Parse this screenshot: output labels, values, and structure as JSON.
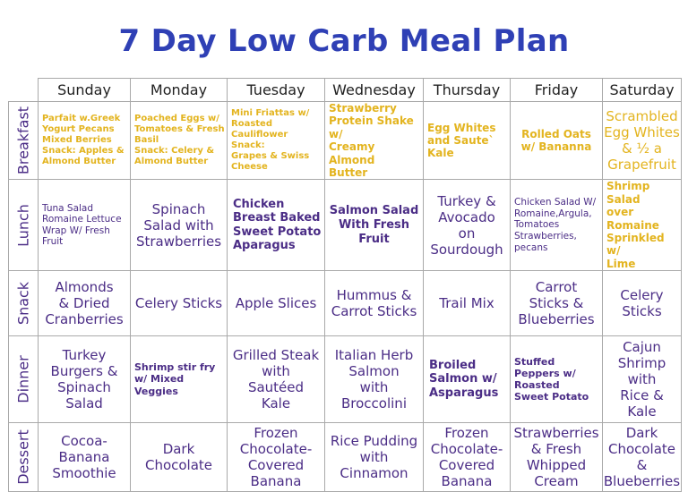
{
  "title": "7 Day Low Carb Meal Plan",
  "days": [
    "Sunday",
    "Monday",
    "Tuesday",
    "Wednesday",
    "Thursday",
    "Friday",
    "Saturday"
  ],
  "meals": [
    {
      "label": "Breakfast",
      "cells": [
        "Parfait w.Greek\nYogurt Pecans\nMixed Berries\nSnack: Apples &\nAlmond Butter",
        "Poached Eggs w/\nTomatoes & Fresh\nBasil\nSnack: Celery &\nAlmond Butter",
        "Mini Friattas w/\nRoasted Cauliflower\nSnack:\nGrapes & Swiss\nCheese",
        "Strawberry\nProtein Shake w/\nCreamy Almond\nButter",
        "Egg Whites\nand Saute`\nKale",
        "Rolled Oats\nw/ Bananna",
        "Scrambled\nEgg Whites\n& ½ a\nGrapefruit"
      ]
    },
    {
      "label": "Lunch",
      "cells": [
        "Tuna Salad\nRomaine Lettuce\nWrap W/ Fresh\nFruit",
        "Spinach\nSalad with\nStrawberries",
        "Chicken\nBreast Baked\nSweet Potato\nAparagus",
        "Salmon Salad\nWith Fresh\nFruit",
        "Turkey &\nAvocado\non\nSourdough",
        "Chicken Salad W/\nRomaine,Argula,\nTomatoes\nStrawberries,\npecans",
        "Shrimp Salad\nover Romaine\nSprinkled w/\nLime"
      ]
    },
    {
      "label": "Snack",
      "cells": [
        "Almonds\n& Dried\nCranberries",
        "Celery Sticks",
        "Apple Slices",
        "Hummus &\nCarrot Sticks",
        "Trail Mix",
        "Carrot\nSticks &\nBlueberries",
        "Celery\nSticks"
      ]
    },
    {
      "label": "Dinner",
      "cells": [
        "Turkey\nBurgers &\nSpinach\nSalad",
        "Shrimp stir fry\nw/ Mixed\nVeggies",
        "Grilled Steak\nwith\nSautéed\nKale",
        "Italian Herb\nSalmon\nwith\nBroccolini",
        "Broiled\nSalmon w/\nAsparagus",
        "Stuffed\nPeppers w/\nRoasted\nSweet Potato",
        "Cajun\nShrimp with\nRice &\nKale"
      ]
    },
    {
      "label": "Dessert",
      "cells": [
        "Cocoa-\nBanana\nSmoothie",
        "Dark\nChocolate",
        "Frozen\nChocolate-\nCovered\nBanana",
        "Rice Pudding\nwith\nCinnamon",
        "Frozen\nChocolate-\nCovered\nBanana",
        "Strawberries\n& Fresh\nWhipped\nCream",
        "Dark\nChocolate\n&\nBlueberries"
      ]
    }
  ],
  "colors": {
    "title": "#2f40b5",
    "purple": "#4b2d86",
    "yellow": "#e3b41f",
    "grid": "#a9a9a9"
  }
}
